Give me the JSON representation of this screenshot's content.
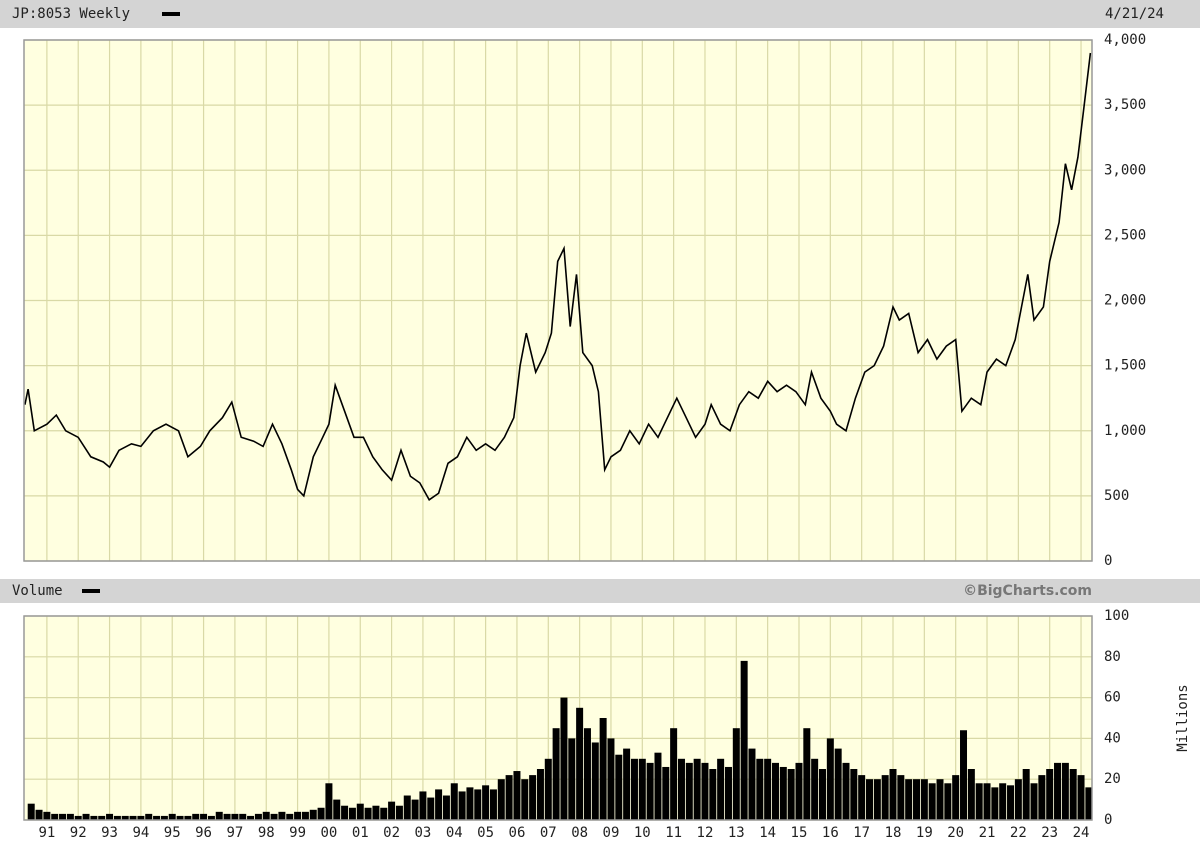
{
  "chart_data": [
    {
      "type": "line",
      "title": "JP:8053 Weekly",
      "date": "4/21/24",
      "color": "#000000",
      "x": [
        1990.3,
        1990.4,
        1990.6,
        1991.0,
        1991.3,
        1991.6,
        1992.0,
        1992.4,
        1992.8,
        1993.0,
        1993.3,
        1993.7,
        1994.0,
        1994.4,
        1994.8,
        1995.2,
        1995.5,
        1995.9,
        1996.2,
        1996.6,
        1996.9,
        1997.2,
        1997.6,
        1997.9,
        1998.2,
        1998.5,
        1998.8,
        1999.0,
        1999.2,
        1999.5,
        1999.8,
        2000.0,
        2000.2,
        2000.5,
        2000.8,
        2001.1,
        2001.4,
        2001.7,
        2002.0,
        2002.3,
        2002.6,
        2002.9,
        2003.2,
        2003.5,
        2003.8,
        2004.1,
        2004.4,
        2004.7,
        2005.0,
        2005.3,
        2005.6,
        2005.9,
        2006.1,
        2006.3,
        2006.6,
        2006.9,
        2007.1,
        2007.3,
        2007.5,
        2007.7,
        2007.9,
        2008.1,
        2008.4,
        2008.6,
        2008.8,
        2009.0,
        2009.3,
        2009.6,
        2009.9,
        2010.2,
        2010.5,
        2010.8,
        2011.1,
        2011.4,
        2011.7,
        2012.0,
        2012.2,
        2012.5,
        2012.8,
        2013.1,
        2013.4,
        2013.7,
        2014.0,
        2014.3,
        2014.6,
        2014.9,
        2015.2,
        2015.4,
        2015.7,
        2016.0,
        2016.2,
        2016.5,
        2016.8,
        2017.1,
        2017.4,
        2017.7,
        2018.0,
        2018.2,
        2018.5,
        2018.8,
        2019.1,
        2019.4,
        2019.7,
        2020.0,
        2020.2,
        2020.5,
        2020.8,
        2021.0,
        2021.3,
        2021.6,
        2021.9,
        2022.1,
        2022.3,
        2022.5,
        2022.8,
        2023.0,
        2023.3,
        2023.5,
        2023.7,
        2023.9,
        2024.1,
        2024.3
      ],
      "values": [
        1200,
        1320,
        1000,
        1050,
        1120,
        1000,
        950,
        800,
        760,
        720,
        850,
        900,
        880,
        1000,
        1050,
        1000,
        800,
        880,
        1000,
        1100,
        1220,
        950,
        920,
        880,
        1050,
        900,
        700,
        550,
        500,
        800,
        950,
        1050,
        1350,
        1150,
        950,
        950,
        800,
        700,
        620,
        850,
        650,
        600,
        470,
        520,
        750,
        800,
        950,
        850,
        900,
        850,
        950,
        1100,
        1500,
        1750,
        1450,
        1600,
        1750,
        2300,
        2400,
        1800,
        2200,
        1600,
        1500,
        1300,
        700,
        800,
        850,
        1000,
        900,
        1050,
        950,
        1100,
        1250,
        1100,
        950,
        1050,
        1200,
        1050,
        1000,
        1200,
        1300,
        1250,
        1380,
        1300,
        1350,
        1300,
        1200,
        1450,
        1250,
        1150,
        1050,
        1000,
        1250,
        1450,
        1500,
        1650,
        1950,
        1850,
        1900,
        1600,
        1700,
        1550,
        1650,
        1700,
        1150,
        1250,
        1200,
        1450,
        1550,
        1500,
        1700,
        1950,
        2200,
        1850,
        1950,
        2300,
        2600,
        3050,
        2850,
        3100,
        3500,
        3900
      ],
      "xlim": [
        1990.27,
        2024.35
      ],
      "ylim": [
        0,
        4000
      ],
      "yticks": [
        0,
        500,
        {
          "value": 1000,
          "label": "1,000"
        },
        {
          "value": 1500,
          "label": "1,500"
        },
        {
          "value": 2000,
          "label": "2,000"
        },
        {
          "value": 2500,
          "label": "2,500"
        },
        {
          "value": 3000,
          "label": "3,000"
        },
        {
          "value": 3500,
          "label": "3,500"
        },
        {
          "value": 4000,
          "label": "4,000"
        }
      ],
      "grid": true
    },
    {
      "type": "bar",
      "title": "Volume",
      "source": "©BigCharts.com",
      "y_label": "Millions",
      "color": "#000000",
      "x": [
        1990.5,
        1990.75,
        1991.0,
        1991.25,
        1991.5,
        1991.75,
        1992.0,
        1992.25,
        1992.5,
        1992.75,
        1993.0,
        1993.25,
        1993.5,
        1993.75,
        1994.0,
        1994.25,
        1994.5,
        1994.75,
        1995.0,
        1995.25,
        1995.5,
        1995.75,
        1996.0,
        1996.25,
        1996.5,
        1996.75,
        1997.0,
        1997.25,
        1997.5,
        1997.75,
        1998.0,
        1998.25,
        1998.5,
        1998.75,
        1999.0,
        1999.25,
        1999.5,
        1999.75,
        2000.0,
        2000.25,
        2000.5,
        2000.75,
        2001.0,
        2001.25,
        2001.5,
        2001.75,
        2002.0,
        2002.25,
        2002.5,
        2002.75,
        2003.0,
        2003.25,
        2003.5,
        2003.75,
        2004.0,
        2004.25,
        2004.5,
        2004.75,
        2005.0,
        2005.25,
        2005.5,
        2005.75,
        2006.0,
        2006.25,
        2006.5,
        2006.75,
        2007.0,
        2007.25,
        2007.5,
        2007.75,
        2008.0,
        2008.25,
        2008.5,
        2008.75,
        2009.0,
        2009.25,
        2009.5,
        2009.75,
        2010.0,
        2010.25,
        2010.5,
        2010.75,
        2011.0,
        2011.25,
        2011.5,
        2011.75,
        2012.0,
        2012.25,
        2012.5,
        2012.75,
        2013.0,
        2013.25,
        2013.5,
        2013.75,
        2014.0,
        2014.25,
        2014.5,
        2014.75,
        2015.0,
        2015.25,
        2015.5,
        2015.75,
        2016.0,
        2016.25,
        2016.5,
        2016.75,
        2017.0,
        2017.25,
        2017.5,
        2017.75,
        2018.0,
        2018.25,
        2018.5,
        2018.75,
        2019.0,
        2019.25,
        2019.5,
        2019.75,
        2020.0,
        2020.25,
        2020.5,
        2020.75,
        2021.0,
        2021.25,
        2021.5,
        2021.75,
        2022.0,
        2022.25,
        2022.5,
        2022.75,
        2023.0,
        2023.25,
        2023.5,
        2023.75,
        2024.0,
        2024.25
      ],
      "values": [
        8,
        5,
        4,
        3,
        3,
        3,
        2,
        3,
        2,
        2,
        3,
        2,
        2,
        2,
        2,
        3,
        2,
        2,
        3,
        2,
        2,
        3,
        3,
        2,
        4,
        3,
        3,
        3,
        2,
        3,
        4,
        3,
        4,
        3,
        4,
        4,
        5,
        6,
        18,
        10,
        7,
        6,
        8,
        6,
        7,
        6,
        9,
        7,
        12,
        10,
        14,
        11,
        15,
        12,
        18,
        14,
        16,
        15,
        17,
        15,
        20,
        22,
        24,
        20,
        22,
        25,
        30,
        45,
        60,
        40,
        55,
        45,
        38,
        50,
        40,
        32,
        35,
        30,
        30,
        28,
        33,
        26,
        45,
        30,
        28,
        30,
        28,
        25,
        30,
        26,
        45,
        78,
        35,
        30,
        30,
        28,
        26,
        25,
        28,
        45,
        30,
        25,
        40,
        35,
        28,
        25,
        22,
        20,
        20,
        22,
        25,
        22,
        20,
        20,
        20,
        18,
        20,
        18,
        22,
        44,
        25,
        18,
        18,
        16,
        18,
        17,
        20,
        25,
        18,
        22,
        25,
        28,
        28,
        25,
        22,
        16
      ],
      "xlim": [
        1990.27,
        2024.35
      ],
      "ylim": [
        0,
        100
      ],
      "yticks": [
        0,
        20,
        40,
        60,
        80,
        100
      ],
      "xticks": [
        {
          "value": 1991,
          "label": "91"
        },
        {
          "value": 1992,
          "label": "92"
        },
        {
          "value": 1993,
          "label": "93"
        },
        {
          "value": 1994,
          "label": "94"
        },
        {
          "value": 1995,
          "label": "95"
        },
        {
          "value": 1996,
          "label": "96"
        },
        {
          "value": 1997,
          "label": "97"
        },
        {
          "value": 1998,
          "label": "98"
        },
        {
          "value": 1999,
          "label": "99"
        },
        {
          "value": 2000,
          "label": "00"
        },
        {
          "value": 2001,
          "label": "01"
        },
        {
          "value": 2002,
          "label": "02"
        },
        {
          "value": 2003,
          "label": "03"
        },
        {
          "value": 2004,
          "label": "04"
        },
        {
          "value": 2005,
          "label": "05"
        },
        {
          "value": 2006,
          "label": "06"
        },
        {
          "value": 2007,
          "label": "07"
        },
        {
          "value": 2008,
          "label": "08"
        },
        {
          "value": 2009,
          "label": "09"
        },
        {
          "value": 2010,
          "label": "10"
        },
        {
          "value": 2011,
          "label": "11"
        },
        {
          "value": 2012,
          "label": "12"
        },
        {
          "value": 2013,
          "label": "13"
        },
        {
          "value": 2014,
          "label": "14"
        },
        {
          "value": 2015,
          "label": "15"
        },
        {
          "value": 2016,
          "label": "16"
        },
        {
          "value": 2017,
          "label": "17"
        },
        {
          "value": 2018,
          "label": "18"
        },
        {
          "value": 2019,
          "label": "19"
        },
        {
          "value": 2020,
          "label": "20"
        },
        {
          "value": 2021,
          "label": "21"
        },
        {
          "value": 2022,
          "label": "22"
        },
        {
          "value": 2023,
          "label": "23"
        },
        {
          "value": 2024,
          "label": "24"
        }
      ],
      "grid": true
    }
  ]
}
